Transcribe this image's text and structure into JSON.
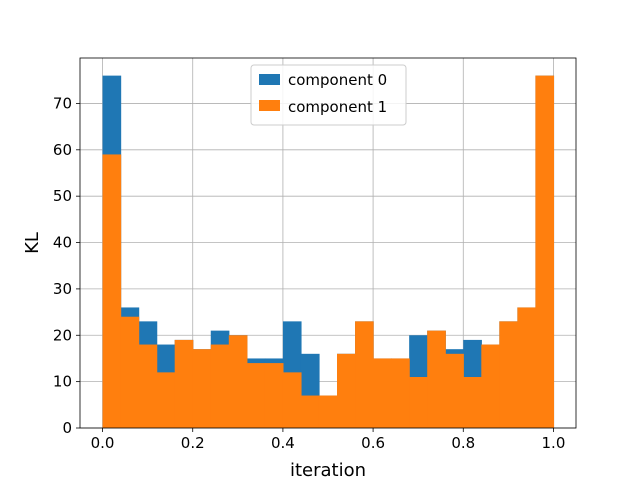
{
  "chart_data": {
    "type": "bar",
    "subtype": "histogram",
    "xlabel": "iteration",
    "ylabel": "KL",
    "xlim": [
      -0.05,
      1.05
    ],
    "ylim": [
      0,
      79.8
    ],
    "xticks": [
      "0.0",
      "0.2",
      "0.4",
      "0.6",
      "0.8",
      "1.0"
    ],
    "yticks": [
      "0",
      "10",
      "20",
      "30",
      "40",
      "50",
      "60",
      "70"
    ],
    "grid": true,
    "legend_position": "top-center",
    "bin_edges": [
      0,
      0.04,
      0.08,
      0.12,
      0.16,
      0.2,
      0.24,
      0.28,
      0.32,
      0.36,
      0.4,
      0.44,
      0.48,
      0.52,
      0.56,
      0.6,
      0.64,
      0.68,
      0.72,
      0.76,
      0.8,
      0.84,
      0.88,
      0.92,
      0.96,
      1.0
    ],
    "series": [
      {
        "name": "component 0",
        "color": "#1f77b4",
        "values": [
          76,
          26,
          23,
          18,
          19,
          17,
          21,
          20,
          15,
          15,
          23,
          16,
          7,
          16,
          23,
          15,
          15,
          20,
          21,
          17,
          19,
          18,
          23,
          26,
          76
        ]
      },
      {
        "name": "component 1",
        "color": "#ff7f0e",
        "values": [
          59,
          24,
          18,
          12,
          19,
          17,
          18,
          20,
          14,
          14,
          12,
          7,
          7,
          16,
          23,
          15,
          15,
          11,
          21,
          16,
          11,
          18,
          23,
          26,
          76
        ]
      }
    ]
  }
}
